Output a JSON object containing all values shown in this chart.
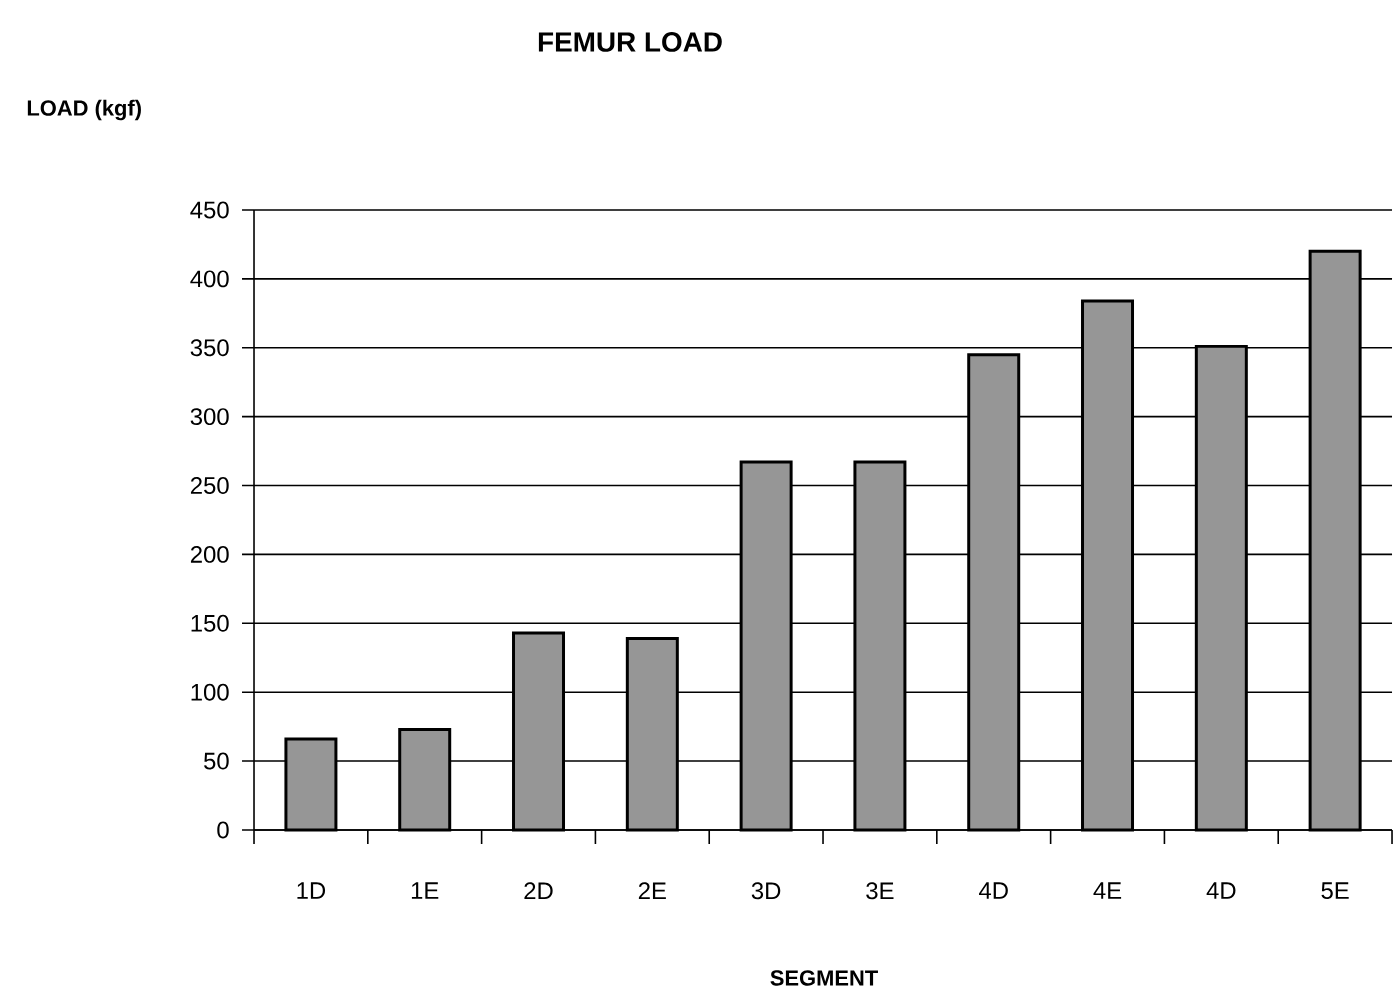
{
  "chart_data": {
    "type": "bar",
    "title": "FEMUR LOAD",
    "ylabel": "LOAD (kgf)",
    "xlabel": "SEGMENT",
    "categories": [
      "1D",
      "1E",
      "2D",
      "2E",
      "3D",
      "3E",
      "4D",
      "4E",
      "4D",
      "5E"
    ],
    "values": [
      66,
      73,
      143,
      139,
      267,
      267,
      345,
      384,
      351,
      420
    ],
    "color": "#969696",
    "ylim": [
      0,
      450
    ],
    "yticks": [
      0,
      50,
      100,
      150,
      200,
      250,
      300,
      350,
      400,
      450
    ],
    "grid": "y"
  }
}
